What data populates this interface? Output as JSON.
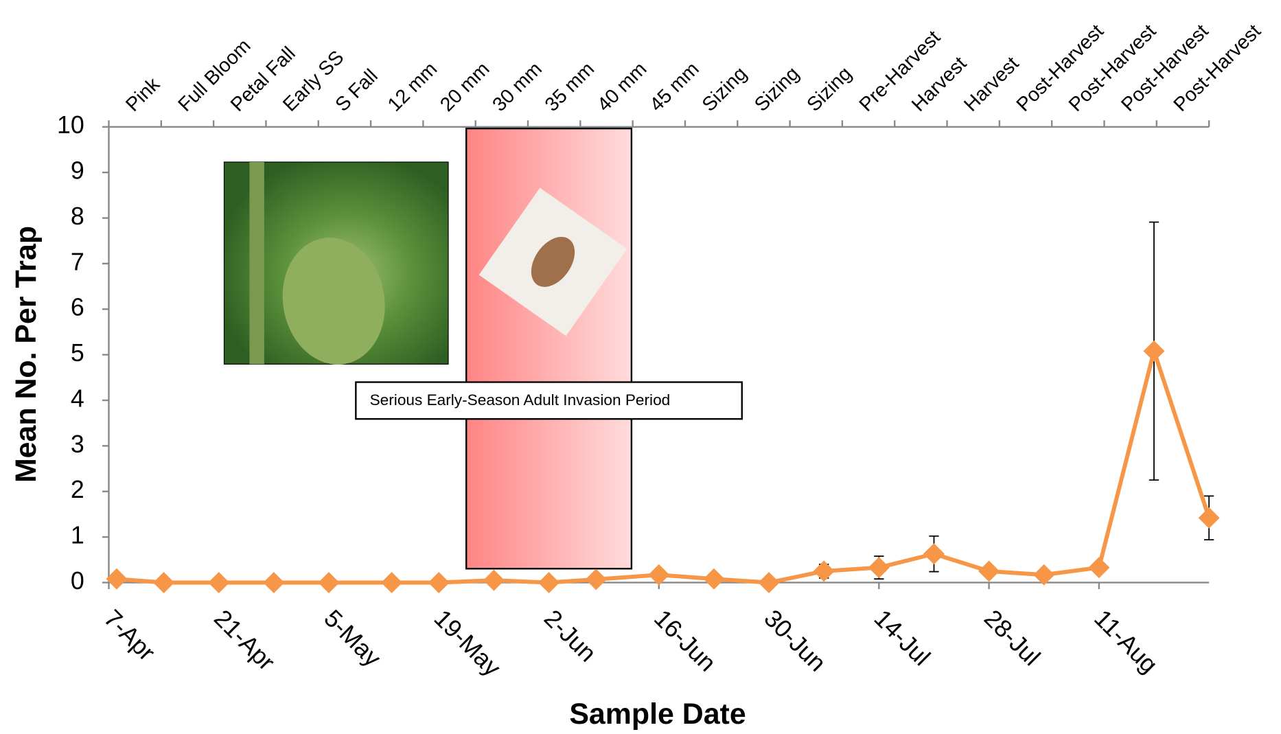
{
  "chart_data": {
    "type": "line",
    "x_label": "Sample Date",
    "y_label": "Mean No. Per Trap",
    "annotation": "Serious Early-Season Adult Invasion Period",
    "top_categories": [
      "Pink",
      "Full Bloom",
      "Petal Fall",
      "Early SS",
      "S Fall",
      "12 mm",
      "20 mm",
      "30 mm",
      "35 mm",
      "40 mm",
      "45 mm",
      "Sizing",
      "Sizing",
      "Sizing",
      "Pre-Harvest",
      "Harvest",
      "Harvest",
      "Post-Harvest",
      "Post-Harvest",
      "Post-Harvest",
      "Post-Harvest"
    ],
    "x": [
      1,
      7,
      14,
      21,
      28,
      36,
      42,
      49,
      56,
      62,
      70,
      77,
      84,
      91,
      98,
      105,
      112,
      119,
      126,
      133,
      140
    ],
    "series": [
      {
        "color": "#f79646",
        "values": [
          0.08,
          0,
          0,
          0,
          0,
          0,
          0,
          0.05,
          0,
          0.07,
          0.17,
          0.08,
          0,
          0.25,
          0.33,
          0.63,
          0.25,
          0.17,
          0.33,
          5.08,
          1.42
        ],
        "errors": [
          null,
          null,
          null,
          null,
          null,
          null,
          null,
          null,
          null,
          null,
          null,
          null,
          null,
          0.15,
          0.25,
          0.39,
          null,
          0.1,
          null,
          2.83,
          0.48
        ]
      }
    ],
    "xlim": [
      0,
      140
    ],
    "xticks": [
      {
        "value": 0,
        "label": "7-Apr"
      },
      {
        "value": 14,
        "label": "21-Apr"
      },
      {
        "value": 28,
        "label": "5-May"
      },
      {
        "value": 42,
        "label": "19-May"
      },
      {
        "value": 56,
        "label": "2-Jun"
      },
      {
        "value": 70,
        "label": "16-Jun"
      },
      {
        "value": 84,
        "label": "30-Jun"
      },
      {
        "value": 98,
        "label": "14-Jul"
      },
      {
        "value": 112,
        "label": "28-Jul"
      },
      {
        "value": 126,
        "label": "11-Aug"
      }
    ],
    "ylim": [
      0,
      10
    ],
    "yticks": [
      0,
      1,
      2,
      3,
      4,
      5,
      6,
      7,
      8,
      9,
      10
    ],
    "grid": false
  }
}
